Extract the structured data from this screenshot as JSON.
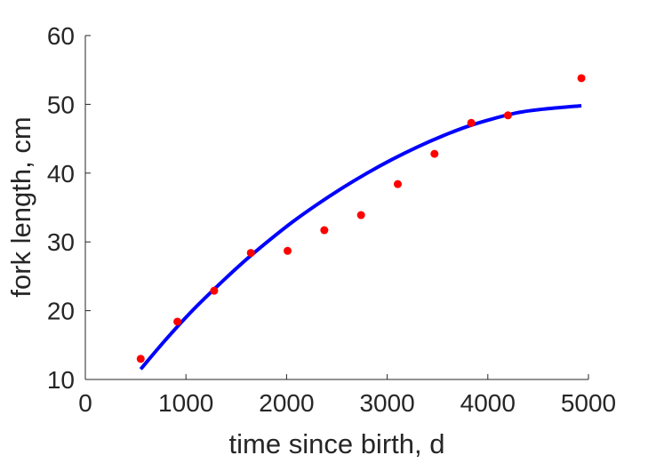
{
  "chart_data": {
    "type": "scatter",
    "xlabel": "time since birth, d",
    "ylabel": "fork length, cm",
    "xlim": [
      0,
      5000
    ],
    "ylim": [
      10,
      60
    ],
    "xticks": [
      0,
      1000,
      2000,
      3000,
      4000,
      5000
    ],
    "yticks": [
      10,
      20,
      30,
      40,
      50,
      60
    ],
    "grid": false,
    "colors": {
      "points": "#ff0000",
      "fit": "#0000ff",
      "axes": "#262626"
    },
    "series": [
      {
        "kind": "scatter",
        "x": [
          550,
          915,
          1280,
          1645,
          2010,
          2375,
          2740,
          3105,
          3470,
          3835,
          4200,
          4930
        ],
        "y": [
          13.0,
          18.4,
          22.9,
          28.4,
          28.7,
          31.7,
          33.9,
          38.4,
          42.8,
          47.3,
          48.4,
          53.8
        ]
      },
      {
        "kind": "line",
        "x": [
          550,
          800,
          1050,
          1300,
          1550,
          1800,
          2050,
          2300,
          2550,
          2800,
          3050,
          3300,
          3550,
          3800,
          4050,
          4300,
          4550,
          4930
        ],
        "y": [
          11.5,
          15.8,
          19.8,
          23.4,
          26.8,
          29.9,
          32.8,
          35.4,
          37.8,
          40.0,
          42.0,
          43.8,
          45.4,
          46.8,
          47.9,
          48.8,
          49.3,
          49.8
        ]
      }
    ]
  }
}
